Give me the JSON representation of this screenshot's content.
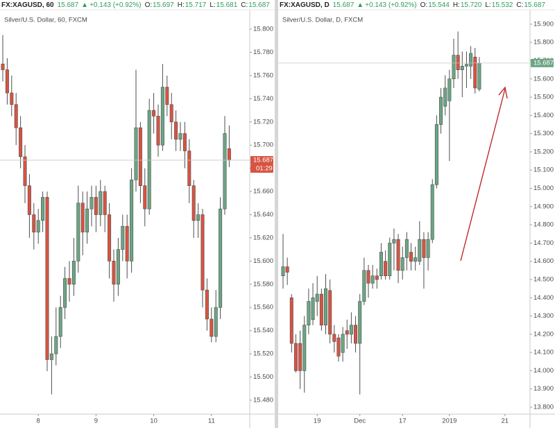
{
  "chart_data": [
    {
      "type": "candlestick",
      "title": "Silver/U.S. Dollar, 60, FXCM",
      "header": {
        "symbol": "FX:XAGUSD, 60",
        "last": "15.687",
        "direction": "▲",
        "change": "+0.143 (+0.92%)",
        "o_label": "O:",
        "open": "15.697",
        "h_label": "H:",
        "high": "15.717",
        "l_label": "L:",
        "low": "15.681",
        "c_label": "C:",
        "close": "15.687"
      },
      "countdown": "01:29",
      "up_color": "#6ba583",
      "down_color": "#d75442",
      "categories": [
        null,
        null,
        null,
        null,
        null,
        null,
        null,
        null,
        "8",
        null,
        null,
        null,
        null,
        null,
        null,
        null,
        null,
        null,
        null,
        null,
        null,
        "9",
        null,
        null,
        null,
        null,
        null,
        null,
        null,
        null,
        null,
        null,
        null,
        null,
        "10",
        null,
        null,
        null,
        null,
        null,
        null,
        null,
        null,
        null,
        null,
        null,
        null,
        "11",
        null,
        null,
        null,
        null
      ],
      "open": [
        15.77,
        15.765,
        15.745,
        15.735,
        15.715,
        15.69,
        15.665,
        15.64,
        15.625,
        15.635,
        15.655,
        15.515,
        15.52,
        15.535,
        15.56,
        15.585,
        15.58,
        15.6,
        15.65,
        15.625,
        15.645,
        15.655,
        15.64,
        15.66,
        15.64,
        15.6,
        15.58,
        15.61,
        15.63,
        15.6,
        15.67,
        15.715,
        15.665,
        15.645,
        15.73,
        15.725,
        15.7,
        15.75,
        15.735,
        15.72,
        15.705,
        15.71,
        15.695,
        15.665,
        15.635,
        15.64,
        15.575,
        15.55,
        15.535,
        15.56,
        15.645,
        15.697
      ],
      "high": [
        15.795,
        15.775,
        15.76,
        15.745,
        15.725,
        15.7,
        15.675,
        15.65,
        15.645,
        15.66,
        15.66,
        15.535,
        15.56,
        15.57,
        15.595,
        15.6,
        15.62,
        15.665,
        15.66,
        15.66,
        15.665,
        15.665,
        15.67,
        15.665,
        15.65,
        15.61,
        15.62,
        15.64,
        15.64,
        15.68,
        15.765,
        15.72,
        15.68,
        15.74,
        15.745,
        15.735,
        15.77,
        15.76,
        15.745,
        15.73,
        15.72,
        15.72,
        15.705,
        15.67,
        15.65,
        15.645,
        15.585,
        15.56,
        15.575,
        15.655,
        15.725,
        15.717
      ],
      "low": [
        15.755,
        15.735,
        15.725,
        15.7,
        15.68,
        15.65,
        15.62,
        15.61,
        15.615,
        15.625,
        15.505,
        15.485,
        15.51,
        15.525,
        15.55,
        15.565,
        15.57,
        15.59,
        15.605,
        15.615,
        15.63,
        15.625,
        15.63,
        15.625,
        15.585,
        15.565,
        15.57,
        15.6,
        15.585,
        15.59,
        15.66,
        15.65,
        15.63,
        15.64,
        15.71,
        15.69,
        15.695,
        15.725,
        15.705,
        15.695,
        15.695,
        15.68,
        15.65,
        15.62,
        15.62,
        15.56,
        15.54,
        15.53,
        15.53,
        15.55,
        15.64,
        15.681
      ],
      "close": [
        15.765,
        15.745,
        15.735,
        15.715,
        15.69,
        15.665,
        15.64,
        15.625,
        15.635,
        15.655,
        15.515,
        15.52,
        15.535,
        15.56,
        15.585,
        15.58,
        15.6,
        15.65,
        15.625,
        15.645,
        15.655,
        15.64,
        15.66,
        15.64,
        15.6,
        15.58,
        15.61,
        15.63,
        15.6,
        15.67,
        15.715,
        15.665,
        15.645,
        15.73,
        15.725,
        15.7,
        15.75,
        15.735,
        15.72,
        15.705,
        15.71,
        15.695,
        15.665,
        15.635,
        15.64,
        15.575,
        15.55,
        15.535,
        15.56,
        15.645,
        15.71,
        15.687
      ],
      "ylim": [
        15.468,
        15.812
      ],
      "yticks": [
        {
          "value": 15.48,
          "label": "15.480"
        },
        {
          "value": 15.5,
          "label": "15.500"
        },
        {
          "value": 15.52,
          "label": "15.520"
        },
        {
          "value": 15.54,
          "label": "15.540"
        },
        {
          "value": 15.56,
          "label": "15.560"
        },
        {
          "value": 15.58,
          "label": "15.580"
        },
        {
          "value": 15.6,
          "label": "15.600"
        },
        {
          "value": 15.62,
          "label": "15.620"
        },
        {
          "value": 15.64,
          "label": "15.640"
        },
        {
          "value": 15.66,
          "label": "15.660"
        },
        {
          "value": 15.68,
          "label": "15.680"
        },
        {
          "value": 15.7,
          "label": "15.700"
        },
        {
          "value": 15.72,
          "label": "15.720"
        },
        {
          "value": 15.74,
          "label": "15.740"
        },
        {
          "value": 15.76,
          "label": "15.760"
        },
        {
          "value": 15.78,
          "label": "15.780"
        },
        {
          "value": 15.8,
          "label": "15.800"
        }
      ],
      "grid": false
    },
    {
      "type": "candlestick",
      "title": "Silver/U.S. Dollar, D, FXCM",
      "header": {
        "symbol": "FX:XAGUSD, D",
        "last": "15.687",
        "direction": "▲",
        "change": "+0.143 (+0.92%)",
        "o_label": "O:",
        "open": "15.544",
        "h_label": "H:",
        "high": "15.720",
        "l_label": "L:",
        "low": "15.532",
        "c_label": "C:",
        "close": "15.687"
      },
      "up_color": "#6ba583",
      "down_color": "#d75442",
      "categories": [
        null,
        null,
        null,
        null,
        null,
        null,
        null,
        null,
        "19",
        null,
        null,
        null,
        null,
        null,
        null,
        null,
        null,
        null,
        "Dec",
        null,
        null,
        null,
        null,
        null,
        null,
        null,
        null,
        null,
        "17",
        null,
        null,
        null,
        null,
        null,
        null,
        null,
        null,
        null,
        null,
        "2019",
        null,
        null,
        null,
        null,
        null,
        null,
        null,
        null,
        null,
        null,
        null,
        null,
        "21"
      ],
      "open": [
        14.52,
        14.57,
        14.4,
        14.15,
        14.15,
        14,
        14.25,
        14.28,
        14.38,
        14.42,
        14.25,
        14.44,
        14.2,
        14.18,
        14.1,
        14.22,
        14.2,
        14.25,
        14.15,
        14.38,
        14.55,
        14.48,
        14.52,
        14.52,
        14.6,
        14.52,
        14.7,
        14.72,
        14.55,
        14.62,
        14.65,
        14.6,
        14.6,
        14.72,
        14.62,
        14.72,
        15.02,
        15.35,
        15.45,
        15.48,
        15.6,
        15.73,
        15.65,
        15.67,
        15.67,
        15.72,
        15.544,
        null,
        null,
        null,
        null,
        null,
        null
      ],
      "high": [
        14.75,
        14.62,
        14.42,
        14.2,
        14.22,
        14.3,
        14.45,
        14.48,
        14.52,
        14.45,
        14.53,
        14.5,
        14.25,
        14.2,
        14.24,
        14.28,
        14.32,
        14.3,
        14.42,
        14.62,
        14.58,
        14.58,
        14.56,
        14.7,
        14.66,
        14.73,
        14.78,
        14.75,
        14.68,
        14.76,
        14.7,
        14.68,
        14.82,
        14.76,
        14.76,
        15.05,
        15.4,
        15.55,
        15.62,
        15.65,
        15.82,
        15.86,
        15.75,
        15.75,
        15.78,
        15.77,
        15.72,
        null,
        null,
        null,
        null,
        null,
        null
      ],
      "low": [
        14.45,
        14.47,
        14.1,
        13.99,
        13.9,
        13.88,
        14.2,
        14.25,
        14.3,
        14.22,
        14.2,
        14.15,
        14.1,
        14.05,
        14.05,
        14.12,
        14.15,
        14.1,
        13.87,
        14.36,
        14.4,
        14.45,
        14.45,
        14.5,
        14.5,
        14.5,
        14.55,
        14.48,
        14.5,
        14.55,
        14.55,
        14.55,
        14.58,
        14.45,
        14.55,
        14.7,
        15,
        15.3,
        15.4,
        15.15,
        15.55,
        15.6,
        15.5,
        15.55,
        15.6,
        15.52,
        15.532,
        null,
        null,
        null,
        null,
        null,
        null
      ],
      "close": [
        14.57,
        14.54,
        14.15,
        14,
        14,
        14.25,
        14.38,
        14.4,
        14.42,
        14.25,
        14.45,
        14.2,
        14.16,
        14.08,
        14.2,
        14.2,
        14.25,
        14.15,
        14.38,
        14.55,
        14.48,
        14.52,
        14.5,
        14.65,
        14.52,
        14.7,
        14.72,
        14.55,
        14.62,
        14.72,
        14.6,
        14.62,
        14.72,
        14.62,
        14.72,
        15.02,
        15.35,
        15.5,
        15.55,
        15.6,
        15.73,
        15.65,
        15.67,
        15.68,
        15.74,
        15.55,
        15.687,
        null,
        null,
        null,
        null,
        null,
        null
      ],
      "ylim": [
        13.762,
        15.949
      ],
      "yticks": [
        {
          "value": 13.8,
          "label": "13.800"
        },
        {
          "value": 13.9,
          "label": "13.900"
        },
        {
          "value": 14,
          "label": "14.000"
        },
        {
          "value": 14.1,
          "label": "14.100"
        },
        {
          "value": 14.2,
          "label": "14.200"
        },
        {
          "value": 14.3,
          "label": "14.300"
        },
        {
          "value": 14.4,
          "label": "14.400"
        },
        {
          "value": 14.5,
          "label": "14.500"
        },
        {
          "value": 14.6,
          "label": "14.600"
        },
        {
          "value": 14.7,
          "label": "14.700"
        },
        {
          "value": 14.8,
          "label": "14.800"
        },
        {
          "value": 14.9,
          "label": "14.900"
        },
        {
          "value": 15,
          "label": "15.000"
        },
        {
          "value": 15.1,
          "label": "15.100"
        },
        {
          "value": 15.2,
          "label": "15.200"
        },
        {
          "value": 15.3,
          "label": "15.300"
        },
        {
          "value": 15.4,
          "label": "15.400"
        },
        {
          "value": 15.5,
          "label": "15.500"
        },
        {
          "value": 15.6,
          "label": "15.600"
        },
        {
          "value": 15.7,
          "label": "15.700"
        },
        {
          "value": 15.8,
          "label": "15.800"
        },
        {
          "value": 15.9,
          "label": "15.900"
        }
      ],
      "grid": false
    }
  ]
}
